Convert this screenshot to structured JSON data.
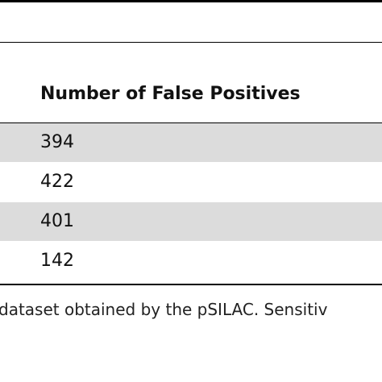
{
  "table": {
    "header": [
      "Number of False Positives"
    ],
    "rows": [
      [
        "394"
      ],
      [
        "422"
      ],
      [
        "401"
      ],
      [
        "142"
      ]
    ]
  },
  "caption": "dataset obtained by the pSILAC. Sensitiv"
}
